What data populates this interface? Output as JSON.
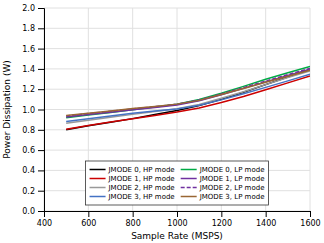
{
  "chart_data": {
    "type": "line",
    "xlabel": "Sample Rate (MSPS)",
    "ylabel": "Power Dissipation (W)",
    "x": [
      500,
      600,
      700,
      800,
      900,
      1000,
      1100,
      1200,
      1300,
      1400,
      1500,
      1600
    ],
    "series": [
      {
        "name": "JMODE 0, HP mode",
        "color": "#000000",
        "line_style": "solid",
        "values": [
          0.8,
          0.84,
          0.875,
          0.91,
          0.95,
          0.99,
          1.04,
          1.1,
          1.17,
          1.245,
          1.32,
          1.395
        ]
      },
      {
        "name": "JMODE 1, HP mode",
        "color": "#cc0000",
        "line_style": "solid",
        "values": [
          0.805,
          0.842,
          0.876,
          0.908,
          0.942,
          0.975,
          1.015,
          1.068,
          1.128,
          1.195,
          1.262,
          1.33
        ]
      },
      {
        "name": "JMODE 2, HP mode",
        "color": "#999999",
        "line_style": "solid",
        "values": [
          0.865,
          0.895,
          0.924,
          0.952,
          0.98,
          1.008,
          1.05,
          1.11,
          1.175,
          1.245,
          1.315,
          1.38
        ]
      },
      {
        "name": "JMODE 3, HP mode",
        "color": "#4472c4",
        "line_style": "solid",
        "values": [
          0.882,
          0.91,
          0.936,
          0.962,
          0.986,
          1.005,
          1.042,
          1.095,
          1.155,
          1.218,
          1.282,
          1.348
        ]
      },
      {
        "name": "JMODE 0, LP mode",
        "color": "#00aa44",
        "line_style": "solid",
        "values": [
          0.918,
          0.946,
          0.97,
          0.998,
          1.025,
          1.052,
          1.098,
          1.16,
          1.228,
          1.298,
          1.362,
          1.425
        ]
      },
      {
        "name": "JMODE 1, LP mode",
        "color": "#7030a0",
        "line_style": "solid",
        "values": [
          0.925,
          0.95,
          0.974,
          0.998,
          1.02,
          1.044,
          1.086,
          1.145,
          1.208,
          1.272,
          1.336,
          1.398
        ]
      },
      {
        "name": "JMODE 2, LP mode",
        "color": "#7030a0",
        "line_style": "dashed",
        "values": [
          0.936,
          0.96,
          0.982,
          1.006,
          1.028,
          1.052,
          1.093,
          1.152,
          1.215,
          1.28,
          1.344,
          1.405
        ]
      },
      {
        "name": "JMODE 3, LP mode",
        "color": "#996633",
        "line_style": "solid",
        "values": [
          0.942,
          0.964,
          0.986,
          1.01,
          1.03,
          1.053,
          1.09,
          1.148,
          1.206,
          1.268,
          1.328,
          1.388
        ]
      }
    ],
    "xlim": [
      400,
      1600
    ],
    "ylim": [
      0,
      2
    ],
    "xticks": [
      400,
      600,
      800,
      1000,
      1200,
      1400,
      1600
    ],
    "yticks": [
      {
        "value": 0,
        "label": "0.0"
      },
      0.2,
      0.4,
      0.6,
      0.8,
      {
        "value": 1.0,
        "label": "1.0"
      },
      1.2,
      1.4,
      1.6,
      1.8,
      {
        "value": 2.0,
        "label": "2.0"
      }
    ],
    "grid": true,
    "legend": "lower center"
  }
}
